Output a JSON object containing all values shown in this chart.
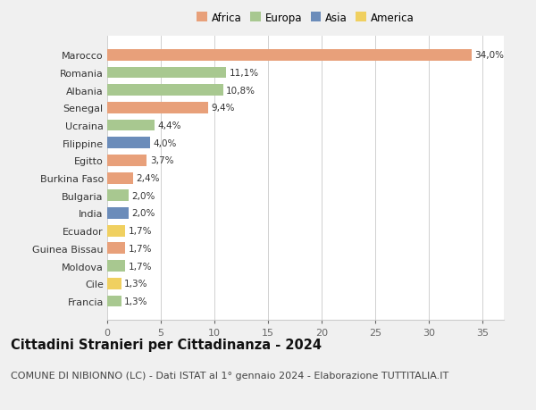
{
  "categories": [
    "Francia",
    "Cile",
    "Moldova",
    "Guinea Bissau",
    "Ecuador",
    "India",
    "Bulgaria",
    "Burkina Faso",
    "Egitto",
    "Filippine",
    "Ucraina",
    "Senegal",
    "Albania",
    "Romania",
    "Marocco"
  ],
  "values": [
    1.3,
    1.3,
    1.7,
    1.7,
    1.7,
    2.0,
    2.0,
    2.4,
    3.7,
    4.0,
    4.4,
    9.4,
    10.8,
    11.1,
    34.0
  ],
  "colors": [
    "#a8c890",
    "#f0d060",
    "#a8c890",
    "#e8a07a",
    "#f0d060",
    "#6b8cba",
    "#a8c890",
    "#e8a07a",
    "#e8a07a",
    "#6b8cba",
    "#a8c890",
    "#e8a07a",
    "#a8c890",
    "#a8c890",
    "#e8a07a"
  ],
  "labels": [
    "1,3%",
    "1,3%",
    "1,7%",
    "1,7%",
    "1,7%",
    "2,0%",
    "2,0%",
    "2,4%",
    "3,7%",
    "4,0%",
    "4,4%",
    "9,4%",
    "10,8%",
    "11,1%",
    "34,0%"
  ],
  "xlim": [
    0,
    37
  ],
  "xticks": [
    0,
    5,
    10,
    15,
    20,
    25,
    30,
    35
  ],
  "title": "Cittadini Stranieri per Cittadinanza - 2024",
  "subtitle": "COMUNE DI NIBIONNO (LC) - Dati ISTAT al 1° gennaio 2024 - Elaborazione TUTTITALIA.IT",
  "legend_items": [
    "Africa",
    "Europa",
    "Asia",
    "America"
  ],
  "legend_colors": [
    "#e8a07a",
    "#a8c890",
    "#6b8cba",
    "#f0d060"
  ],
  "bg_color": "#f0f0f0",
  "plot_bg_color": "#ffffff",
  "title_fontsize": 10.5,
  "subtitle_fontsize": 8,
  "label_fontsize": 7.5,
  "tick_fontsize": 8,
  "legend_fontsize": 8.5
}
